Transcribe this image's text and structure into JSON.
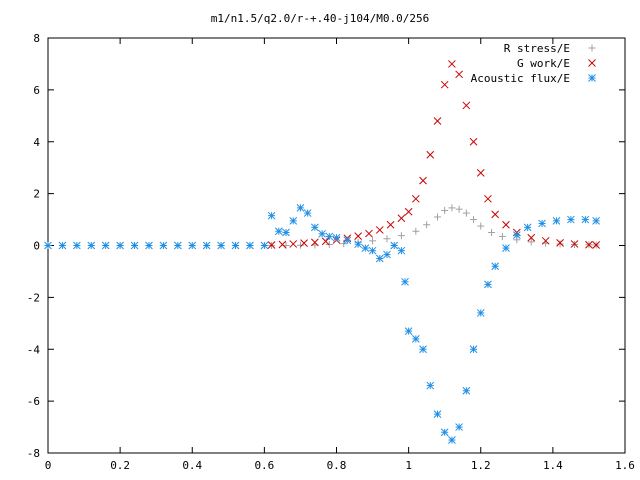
{
  "chart_data": {
    "type": "scatter",
    "title": "m1/n1.5/q2.0/r-+.40-j104/M0.0/256",
    "xlabel": "",
    "ylabel": "",
    "xlim": [
      0,
      1.6
    ],
    "ylim": [
      -8,
      8
    ],
    "xticks": [
      "0",
      "0.2",
      "0.4",
      "0.6",
      "0.8",
      "1",
      "1.2",
      "1.4",
      "1.6"
    ],
    "yticks": [
      "-8",
      "-6",
      "-4",
      "-2",
      "0",
      "2",
      "4",
      "6",
      "8"
    ],
    "grid": false,
    "legend_position": "top-right",
    "series": [
      {
        "name": "R stress/E",
        "marker": "plus",
        "color": "#a0a0a0",
        "points": [
          [
            0.62,
            0.0
          ],
          [
            0.66,
            0.0
          ],
          [
            0.7,
            0.01
          ],
          [
            0.74,
            0.02
          ],
          [
            0.78,
            0.04
          ],
          [
            0.82,
            0.07
          ],
          [
            0.86,
            0.12
          ],
          [
            0.9,
            0.18
          ],
          [
            0.94,
            0.26
          ],
          [
            0.98,
            0.38
          ],
          [
            1.02,
            0.55
          ],
          [
            1.05,
            0.8
          ],
          [
            1.08,
            1.1
          ],
          [
            1.1,
            1.35
          ],
          [
            1.12,
            1.45
          ],
          [
            1.14,
            1.4
          ],
          [
            1.16,
            1.25
          ],
          [
            1.18,
            1.0
          ],
          [
            1.2,
            0.75
          ],
          [
            1.23,
            0.5
          ],
          [
            1.26,
            0.35
          ],
          [
            1.3,
            0.22
          ],
          [
            1.34,
            0.14
          ],
          [
            1.38,
            0.09
          ],
          [
            1.42,
            0.06
          ],
          [
            1.46,
            0.04
          ],
          [
            1.5,
            0.03
          ],
          [
            1.52,
            0.02
          ]
        ]
      },
      {
        "name": "G work/E",
        "marker": "cross",
        "color": "#cc0000",
        "points": [
          [
            0.62,
            0.02
          ],
          [
            0.65,
            0.04
          ],
          [
            0.68,
            0.06
          ],
          [
            0.71,
            0.09
          ],
          [
            0.74,
            0.12
          ],
          [
            0.77,
            0.16
          ],
          [
            0.8,
            0.21
          ],
          [
            0.83,
            0.28
          ],
          [
            0.86,
            0.36
          ],
          [
            0.89,
            0.46
          ],
          [
            0.92,
            0.6
          ],
          [
            0.95,
            0.8
          ],
          [
            0.98,
            1.05
          ],
          [
            1.0,
            1.3
          ],
          [
            1.02,
            1.8
          ],
          [
            1.04,
            2.5
          ],
          [
            1.06,
            3.5
          ],
          [
            1.08,
            4.8
          ],
          [
            1.1,
            6.2
          ],
          [
            1.12,
            7.0
          ],
          [
            1.14,
            6.6
          ],
          [
            1.16,
            5.4
          ],
          [
            1.18,
            4.0
          ],
          [
            1.2,
            2.8
          ],
          [
            1.22,
            1.8
          ],
          [
            1.24,
            1.2
          ],
          [
            1.27,
            0.8
          ],
          [
            1.3,
            0.5
          ],
          [
            1.34,
            0.3
          ],
          [
            1.38,
            0.18
          ],
          [
            1.42,
            0.1
          ],
          [
            1.46,
            0.06
          ],
          [
            1.5,
            0.03
          ],
          [
            1.52,
            0.02
          ]
        ]
      },
      {
        "name": "Acoustic flux/E",
        "marker": "star",
        "color": "#1f8fe6",
        "points": [
          [
            0.0,
            0.0
          ],
          [
            0.04,
            0.0
          ],
          [
            0.08,
            0.0
          ],
          [
            0.12,
            0.0
          ],
          [
            0.16,
            0.0
          ],
          [
            0.2,
            0.0
          ],
          [
            0.24,
            0.0
          ],
          [
            0.28,
            0.0
          ],
          [
            0.32,
            0.0
          ],
          [
            0.36,
            0.0
          ],
          [
            0.4,
            0.0
          ],
          [
            0.44,
            0.0
          ],
          [
            0.48,
            0.0
          ],
          [
            0.52,
            0.0
          ],
          [
            0.56,
            0.0
          ],
          [
            0.6,
            0.0
          ],
          [
            0.62,
            1.15
          ],
          [
            0.64,
            0.55
          ],
          [
            0.66,
            0.5
          ],
          [
            0.68,
            0.95
          ],
          [
            0.7,
            1.45
          ],
          [
            0.72,
            1.25
          ],
          [
            0.74,
            0.7
          ],
          [
            0.76,
            0.45
          ],
          [
            0.78,
            0.35
          ],
          [
            0.8,
            0.3
          ],
          [
            0.83,
            0.2
          ],
          [
            0.86,
            0.05
          ],
          [
            0.88,
            -0.1
          ],
          [
            0.9,
            -0.2
          ],
          [
            0.92,
            -0.5
          ],
          [
            0.94,
            -0.35
          ],
          [
            0.96,
            0.0
          ],
          [
            0.98,
            -0.2
          ],
          [
            0.99,
            -1.4
          ],
          [
            1.0,
            -3.3
          ],
          [
            1.02,
            -3.6
          ],
          [
            1.04,
            -4.0
          ],
          [
            1.06,
            -5.4
          ],
          [
            1.08,
            -6.5
          ],
          [
            1.1,
            -7.2
          ],
          [
            1.12,
            -7.5
          ],
          [
            1.14,
            -7.0
          ],
          [
            1.16,
            -5.6
          ],
          [
            1.18,
            -4.0
          ],
          [
            1.2,
            -2.6
          ],
          [
            1.22,
            -1.5
          ],
          [
            1.24,
            -0.8
          ],
          [
            1.27,
            -0.1
          ],
          [
            1.3,
            0.4
          ],
          [
            1.33,
            0.7
          ],
          [
            1.37,
            0.85
          ],
          [
            1.41,
            0.95
          ],
          [
            1.45,
            1.0
          ],
          [
            1.49,
            1.0
          ],
          [
            1.52,
            0.95
          ]
        ]
      }
    ]
  }
}
